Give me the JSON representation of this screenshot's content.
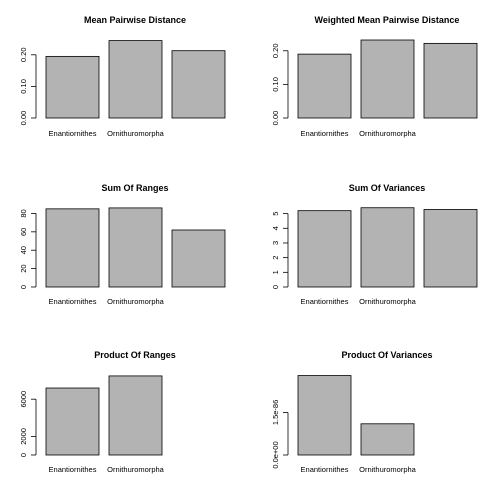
{
  "chart_data": [
    {
      "type": "bar",
      "title": "Mean Pairwise Distance",
      "categories": [
        "Enantiornithes",
        "Ornithuromorpha",
        ""
      ],
      "values": [
        0.195,
        0.245,
        0.213
      ],
      "yticks": [
        0,
        0.1,
        0.2
      ],
      "ytick_labels": [
        "0.00",
        "0.10",
        "0.20"
      ],
      "ylim": [
        0,
        0.25
      ],
      "bar_color": "#b3b3b3"
    },
    {
      "type": "bar",
      "title": "Weighted Mean Pairwise Distance",
      "categories": [
        "Enantiornithes",
        "Ornithuromorpha",
        ""
      ],
      "values": [
        0.19,
        0.232,
        0.222
      ],
      "yticks": [
        0,
        0.1,
        0.2
      ],
      "ytick_labels": [
        "0.00",
        "0.10",
        "0.20"
      ],
      "ylim": [
        0,
        0.235
      ],
      "bar_color": "#b3b3b3"
    },
    {
      "type": "bar",
      "title": "Sum Of Ranges",
      "categories": [
        "Enantiornithes",
        "Ornithuromorpha",
        ""
      ],
      "values": [
        85,
        86,
        62
      ],
      "yticks": [
        0,
        20,
        40,
        60,
        80
      ],
      "ytick_labels": [
        "0",
        "20",
        "40",
        "60",
        "80"
      ],
      "ylim": [
        0,
        87
      ],
      "bar_color": "#b3b3b3"
    },
    {
      "type": "bar",
      "title": "Sum Of Variances",
      "categories": [
        "Enantiornithes",
        "Ornithuromorpha",
        ""
      ],
      "values": [
        5.2,
        5.4,
        5.28
      ],
      "yticks": [
        0,
        1,
        2,
        3,
        4,
        5
      ],
      "ytick_labels": [
        "0",
        "1",
        "2",
        "3",
        "4",
        "5"
      ],
      "ylim": [
        0,
        5.45
      ],
      "bar_color": "#b3b3b3"
    },
    {
      "type": "bar",
      "title": "Product Of Ranges",
      "categories": [
        "Enantiornithes",
        "Ornithuromorpha",
        ""
      ],
      "values": [
        7200,
        8500,
        0
      ],
      "yticks": [
        0,
        2000,
        6000
      ],
      "ytick_labels": [
        "0",
        "2000",
        "6000"
      ],
      "ylim": [
        0,
        8600
      ],
      "bar_color": "#b3b3b3"
    },
    {
      "type": "bar",
      "title": "Product Of Variances",
      "categories": [
        "Enantiornithes",
        "Ornithuromorpha",
        ""
      ],
      "values": [
        2.8e-86,
        1.1e-86,
        0
      ],
      "yticks": [
        0,
        1.5e-86
      ],
      "ytick_labels": [
        "0.0e+00",
        "1.5e-86"
      ],
      "ylim": [
        0,
        2.82e-86
      ],
      "bar_color": "#b3b3b3"
    }
  ]
}
